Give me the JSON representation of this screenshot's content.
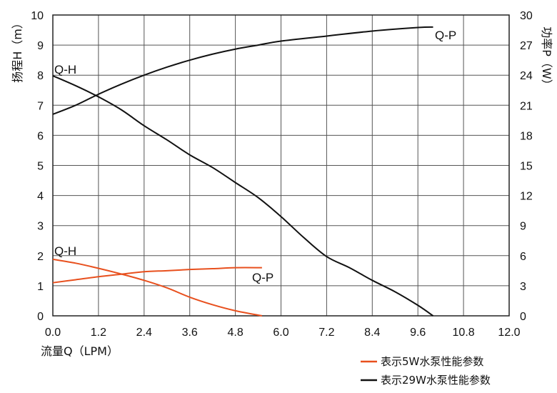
{
  "chart_data": {
    "type": "line",
    "xlabel": "流量Q（LPM）",
    "ylabel_left": "扬程H（m）",
    "ylabel_right": "功率P（W）",
    "xlim": [
      0,
      12
    ],
    "ylim_left": [
      0,
      10
    ],
    "ylim_right": [
      0,
      30
    ],
    "x_ticks": [
      "0.0",
      "1.2",
      "2.4",
      "3.6",
      "4.8",
      "6.0",
      "7.2",
      "8.4",
      "9.6",
      "10.8",
      "12.0"
    ],
    "y_left_ticks": [
      "0",
      "1",
      "2",
      "3",
      "4",
      "5",
      "6",
      "7",
      "8",
      "9",
      "10"
    ],
    "y_right_ticks": [
      "0",
      "3",
      "6",
      "9",
      "12",
      "15",
      "18",
      "21",
      "24",
      "27",
      "30"
    ],
    "grid": true,
    "legend_position": "bottom-right",
    "legend": [
      {
        "label": "表示5W水泵性能参数",
        "color": "#e8501e"
      },
      {
        "label": "表示29W水泵性能参数",
        "color": "#111111"
      }
    ],
    "series": [
      {
        "label": "Q-H",
        "group": "5W",
        "axis": "left",
        "color": "#e8501e",
        "points": [
          [
            0,
            1.88
          ],
          [
            0.6,
            1.75
          ],
          [
            1.2,
            1.58
          ],
          [
            1.8,
            1.39
          ],
          [
            2.4,
            1.18
          ],
          [
            3.0,
            0.93
          ],
          [
            3.6,
            0.62
          ],
          [
            4.2,
            0.37
          ],
          [
            4.8,
            0.17
          ],
          [
            5.5,
            0.0
          ]
        ]
      },
      {
        "label": "Q-P",
        "group": "5W",
        "axis": "right",
        "color": "#e8501e",
        "points": [
          [
            0,
            3.3
          ],
          [
            0.6,
            3.6
          ],
          [
            1.2,
            3.9
          ],
          [
            1.8,
            4.15
          ],
          [
            2.4,
            4.4
          ],
          [
            3.0,
            4.5
          ],
          [
            3.6,
            4.62
          ],
          [
            4.2,
            4.7
          ],
          [
            4.8,
            4.8
          ],
          [
            5.5,
            4.8
          ]
        ]
      },
      {
        "label": "Q-H",
        "group": "29W",
        "axis": "left",
        "color": "#111111",
        "points": [
          [
            0,
            7.98
          ],
          [
            0.6,
            7.65
          ],
          [
            1.2,
            7.28
          ],
          [
            1.8,
            6.85
          ],
          [
            2.4,
            6.32
          ],
          [
            3.0,
            5.85
          ],
          [
            3.6,
            5.35
          ],
          [
            4.2,
            4.93
          ],
          [
            4.8,
            4.43
          ],
          [
            5.4,
            3.93
          ],
          [
            6.0,
            3.3
          ],
          [
            6.6,
            2.6
          ],
          [
            7.2,
            1.97
          ],
          [
            7.8,
            1.6
          ],
          [
            8.4,
            1.18
          ],
          [
            9.0,
            0.8
          ],
          [
            9.6,
            0.35
          ],
          [
            10.0,
            0.0
          ]
        ]
      },
      {
        "label": "Q-P",
        "group": "29W",
        "axis": "right",
        "color": "#111111",
        "points": [
          [
            0,
            20.1
          ],
          [
            0.6,
            21.0
          ],
          [
            1.2,
            22.1
          ],
          [
            1.8,
            23.1
          ],
          [
            2.4,
            24.0
          ],
          [
            3.0,
            24.8
          ],
          [
            3.6,
            25.5
          ],
          [
            4.2,
            26.1
          ],
          [
            4.8,
            26.6
          ],
          [
            5.4,
            27.0
          ],
          [
            6.0,
            27.4
          ],
          [
            7.2,
            27.9
          ],
          [
            8.4,
            28.4
          ],
          [
            9.6,
            28.75
          ],
          [
            10.0,
            28.8
          ]
        ]
      }
    ]
  }
}
